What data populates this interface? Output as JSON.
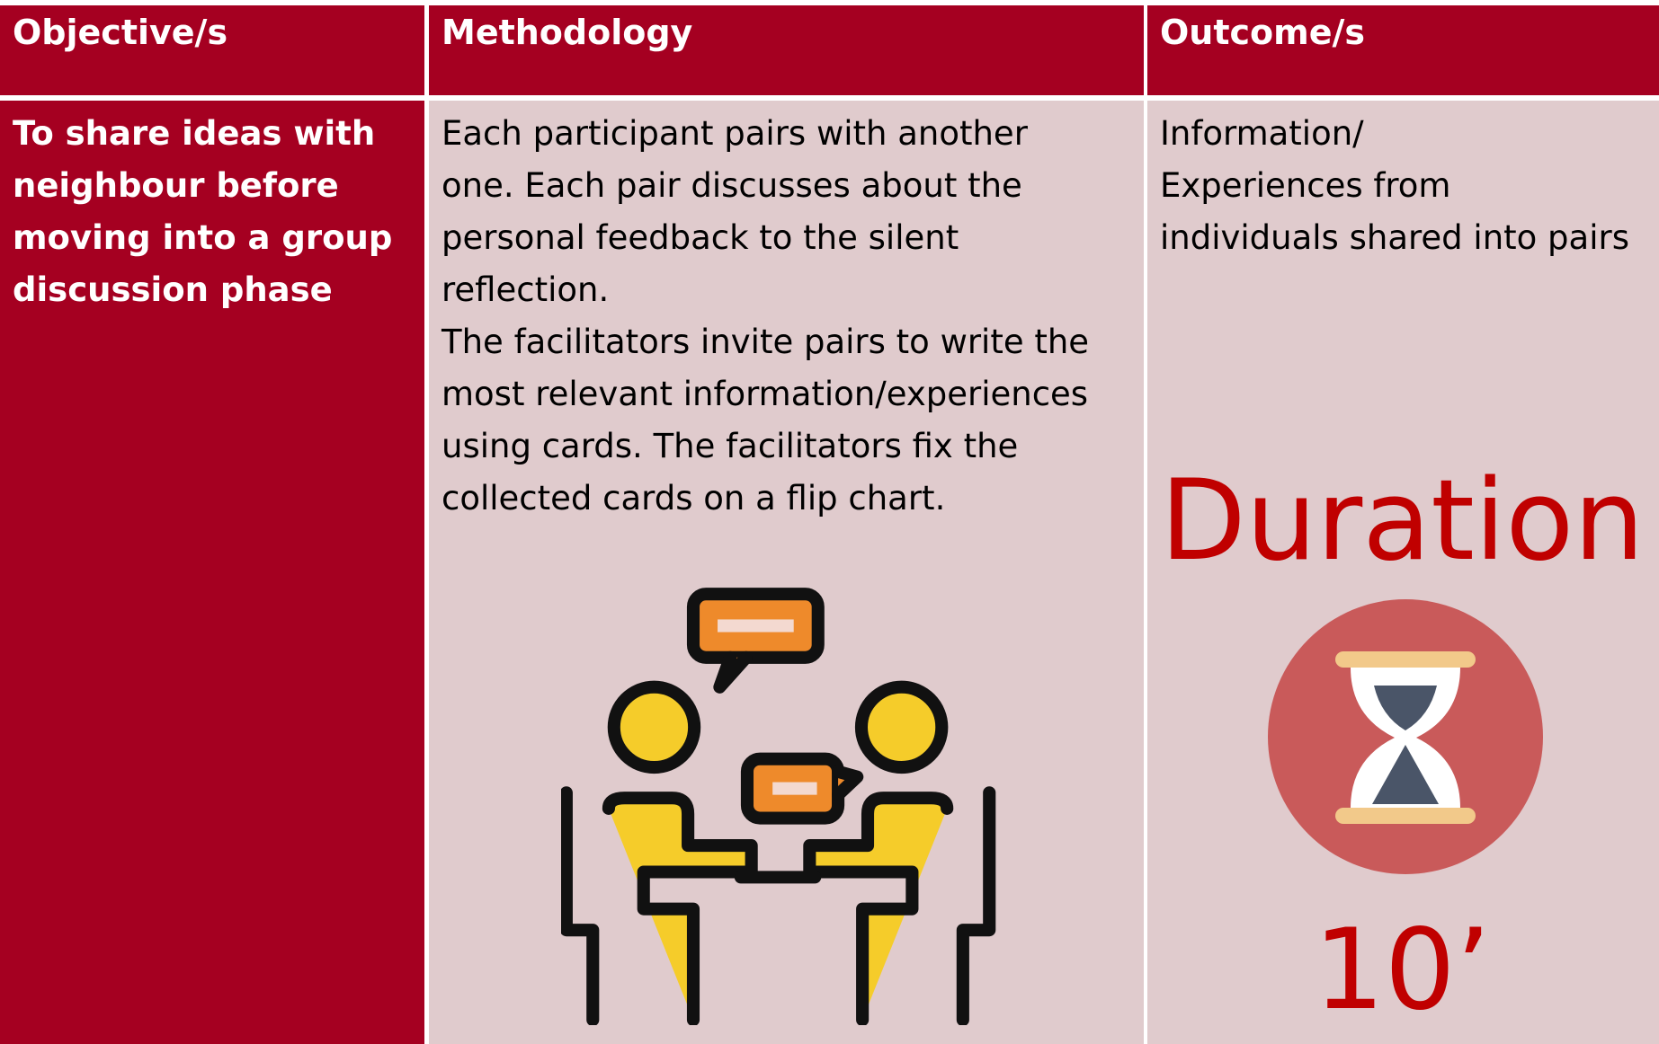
{
  "table": {
    "headers": [
      "Objective/s",
      "Methodology",
      "Outcome/s"
    ],
    "rows": [
      [
        [
          "To share ideas with",
          "neighbour before",
          "moving into a group",
          "discussion phase"
        ],
        [
          "Each participant pairs with another",
          "one. Each pair discusses about the",
          "personal feedback to the silent",
          "reflection.",
          "The facilitators invite pairs to write the",
          "most relevant information/experiences",
          "using cards. The facilitators fix the",
          "collected cards on a flip chart."
        ],
        [
          "Information/",
          "Experiences from",
          "individuals shared into pairs"
        ]
      ]
    ]
  },
  "duration": {
    "label": "Duration",
    "value": "10’"
  }
}
